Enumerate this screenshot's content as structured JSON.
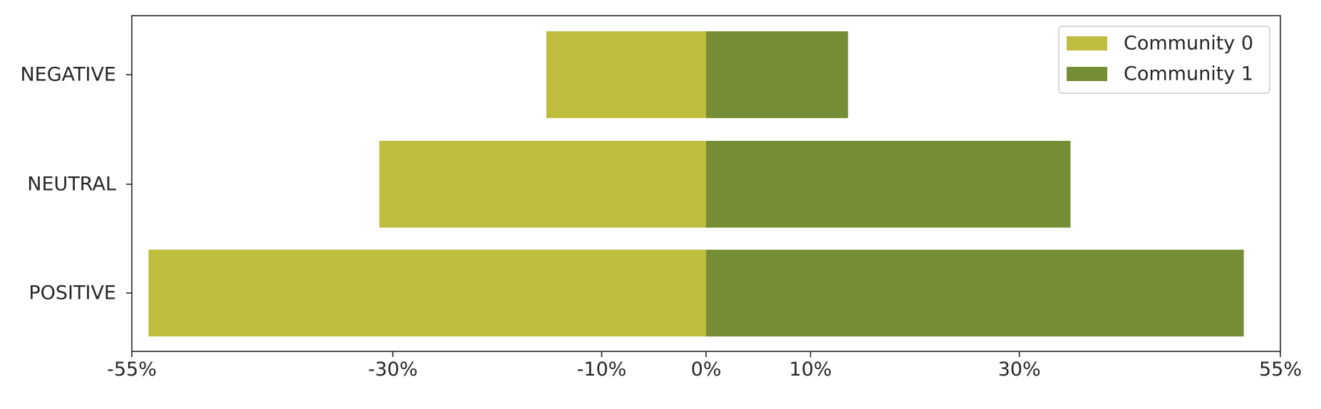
{
  "chart_data": {
    "type": "bar",
    "orientation": "horizontal",
    "stacking": "diverging",
    "categories": [
      "NEGATIVE",
      "NEUTRAL",
      "POSITIVE"
    ],
    "series": [
      {
        "name": "Community 0",
        "color": "#bfbd3e",
        "values": [
          -15.3,
          -31.3,
          -53.4
        ]
      },
      {
        "name": "Community 1",
        "color": "#758e36",
        "values": [
          13.6,
          34.9,
          51.5
        ]
      }
    ],
    "xlim": [
      -55,
      55
    ],
    "xticks": [
      -55,
      -30,
      -10,
      0,
      10,
      30,
      55
    ],
    "xtick_labels": [
      "-55%",
      "-30%",
      "-10%",
      "0%",
      "10%",
      "30%",
      "55%"
    ],
    "title": "",
    "xlabel": "",
    "ylabel": "",
    "grid": false,
    "legend_position": "top-right"
  }
}
